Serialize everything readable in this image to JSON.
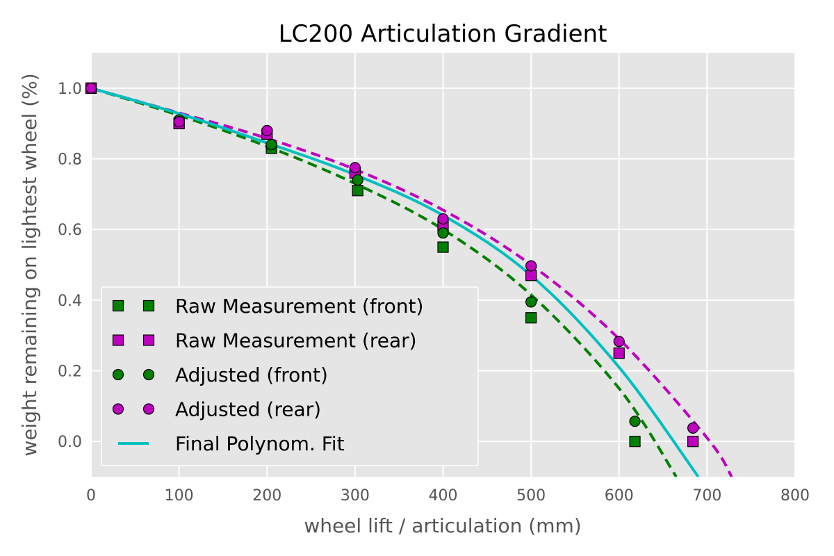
{
  "chart_data": {
    "type": "scatter",
    "title": "LC200 Articulation Gradient",
    "xlabel": "wheel lift / articulation (mm)",
    "ylabel": "weight remaining on lightest wheel (%)",
    "xlim": [
      0,
      800
    ],
    "ylim": [
      -0.1,
      1.1
    ],
    "xticks": [
      0,
      100,
      200,
      300,
      400,
      500,
      600,
      700,
      800
    ],
    "yticks": [
      0.0,
      0.2,
      0.4,
      0.6,
      0.8,
      1.0
    ],
    "xtick_labels": [
      "0",
      "100",
      "200",
      "300",
      "400",
      "500",
      "600",
      "700",
      "800"
    ],
    "ytick_labels": [
      "0.0",
      "0.2",
      "0.4",
      "0.6",
      "0.8",
      "1.0"
    ],
    "grid": true,
    "legend_position": "lower-left",
    "series": [
      {
        "name": "Raw Measurement (front)",
        "marker": "square",
        "color": "#008000",
        "x": [
          0,
          100,
          205,
          303,
          400,
          500,
          618
        ],
        "y": [
          1.0,
          0.9,
          0.83,
          0.71,
          0.55,
          0.35,
          0.0
        ]
      },
      {
        "name": "Raw Measurement (rear)",
        "marker": "square",
        "color": "#bf00bf",
        "x": [
          0,
          100,
          200,
          300,
          400,
          500,
          600,
          684
        ],
        "y": [
          1.0,
          0.9,
          0.87,
          0.76,
          0.61,
          0.47,
          0.25,
          0.0
        ]
      },
      {
        "name": "Adjusted (front)",
        "marker": "circle",
        "color": "#008000",
        "x": [
          0,
          100,
          205,
          303,
          400,
          500,
          618
        ],
        "y": [
          1.0,
          0.91,
          0.84,
          0.74,
          0.59,
          0.395,
          0.057
        ]
      },
      {
        "name": "Adjusted (rear)",
        "marker": "circle",
        "color": "#bf00bf",
        "x": [
          0,
          100,
          200,
          300,
          400,
          500,
          600,
          684
        ],
        "y": [
          1.0,
          0.905,
          0.88,
          0.775,
          0.63,
          0.497,
          0.283,
          0.038
        ]
      },
      {
        "name": "Final Polynom. Fit",
        "line": "solid",
        "color": "#00bfbf",
        "x": [
          0,
          100,
          200,
          300,
          400,
          500,
          600,
          690
        ],
        "y": [
          1.0,
          0.928,
          0.845,
          0.755,
          0.64,
          0.47,
          0.21,
          -0.1
        ]
      }
    ],
    "fits": [
      {
        "color": "#008000",
        "line": "dashed",
        "x": [
          0,
          100,
          200,
          300,
          400,
          500,
          600,
          665
        ],
        "y": [
          1.0,
          0.923,
          0.835,
          0.73,
          0.6,
          0.415,
          0.15,
          -0.1
        ]
      },
      {
        "color": "#bf00bf",
        "line": "dashed",
        "x": [
          0,
          100,
          200,
          300,
          400,
          500,
          600,
          700,
          728
        ],
        "y": [
          1.0,
          0.93,
          0.858,
          0.77,
          0.655,
          0.5,
          0.29,
          0.01,
          -0.1
        ]
      }
    ]
  }
}
